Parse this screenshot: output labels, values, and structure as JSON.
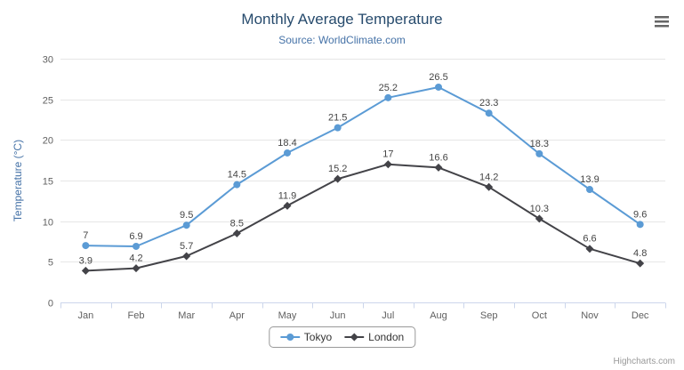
{
  "chart": {
    "title": "Monthly Average Temperature",
    "subtitle": "Source: WorldClimate.com",
    "ylabel": "Temperature (°C)",
    "credits": "Highcharts.com"
  },
  "colors": {
    "title": "#274b6d",
    "subtitle": "#4572a7",
    "grid": "#e6e6e6",
    "axis": "#ccd6eb",
    "tick_text": "#606060",
    "data_label": "#444444",
    "menu_icon": "#666666",
    "tokyo": "#5b9bd5",
    "london": "#434348"
  },
  "chart_data": {
    "type": "line",
    "title": "Monthly Average Temperature",
    "subtitle": "Source: WorldClimate.com",
    "xlabel": "",
    "ylabel": "Temperature (°C)",
    "categories": [
      "Jan",
      "Feb",
      "Mar",
      "Apr",
      "May",
      "Jun",
      "Jul",
      "Aug",
      "Sep",
      "Oct",
      "Nov",
      "Dec"
    ],
    "series": [
      {
        "name": "Tokyo",
        "color": "#5b9bd5",
        "marker": "circle",
        "values": [
          7,
          6.9,
          9.5,
          14.5,
          18.4,
          21.5,
          25.2,
          26.5,
          23.3,
          18.3,
          13.9,
          9.6
        ]
      },
      {
        "name": "London",
        "color": "#434348",
        "marker": "diamond",
        "values": [
          3.9,
          4.2,
          5.7,
          8.5,
          11.9,
          15.2,
          17,
          16.6,
          14.2,
          10.3,
          6.6,
          4.8
        ]
      }
    ],
    "ylim": [
      0,
      30
    ],
    "yticks": [
      0,
      5,
      10,
      15,
      20,
      25,
      30
    ],
    "grid": true,
    "legend_position": "bottom",
    "data_labels": true
  }
}
